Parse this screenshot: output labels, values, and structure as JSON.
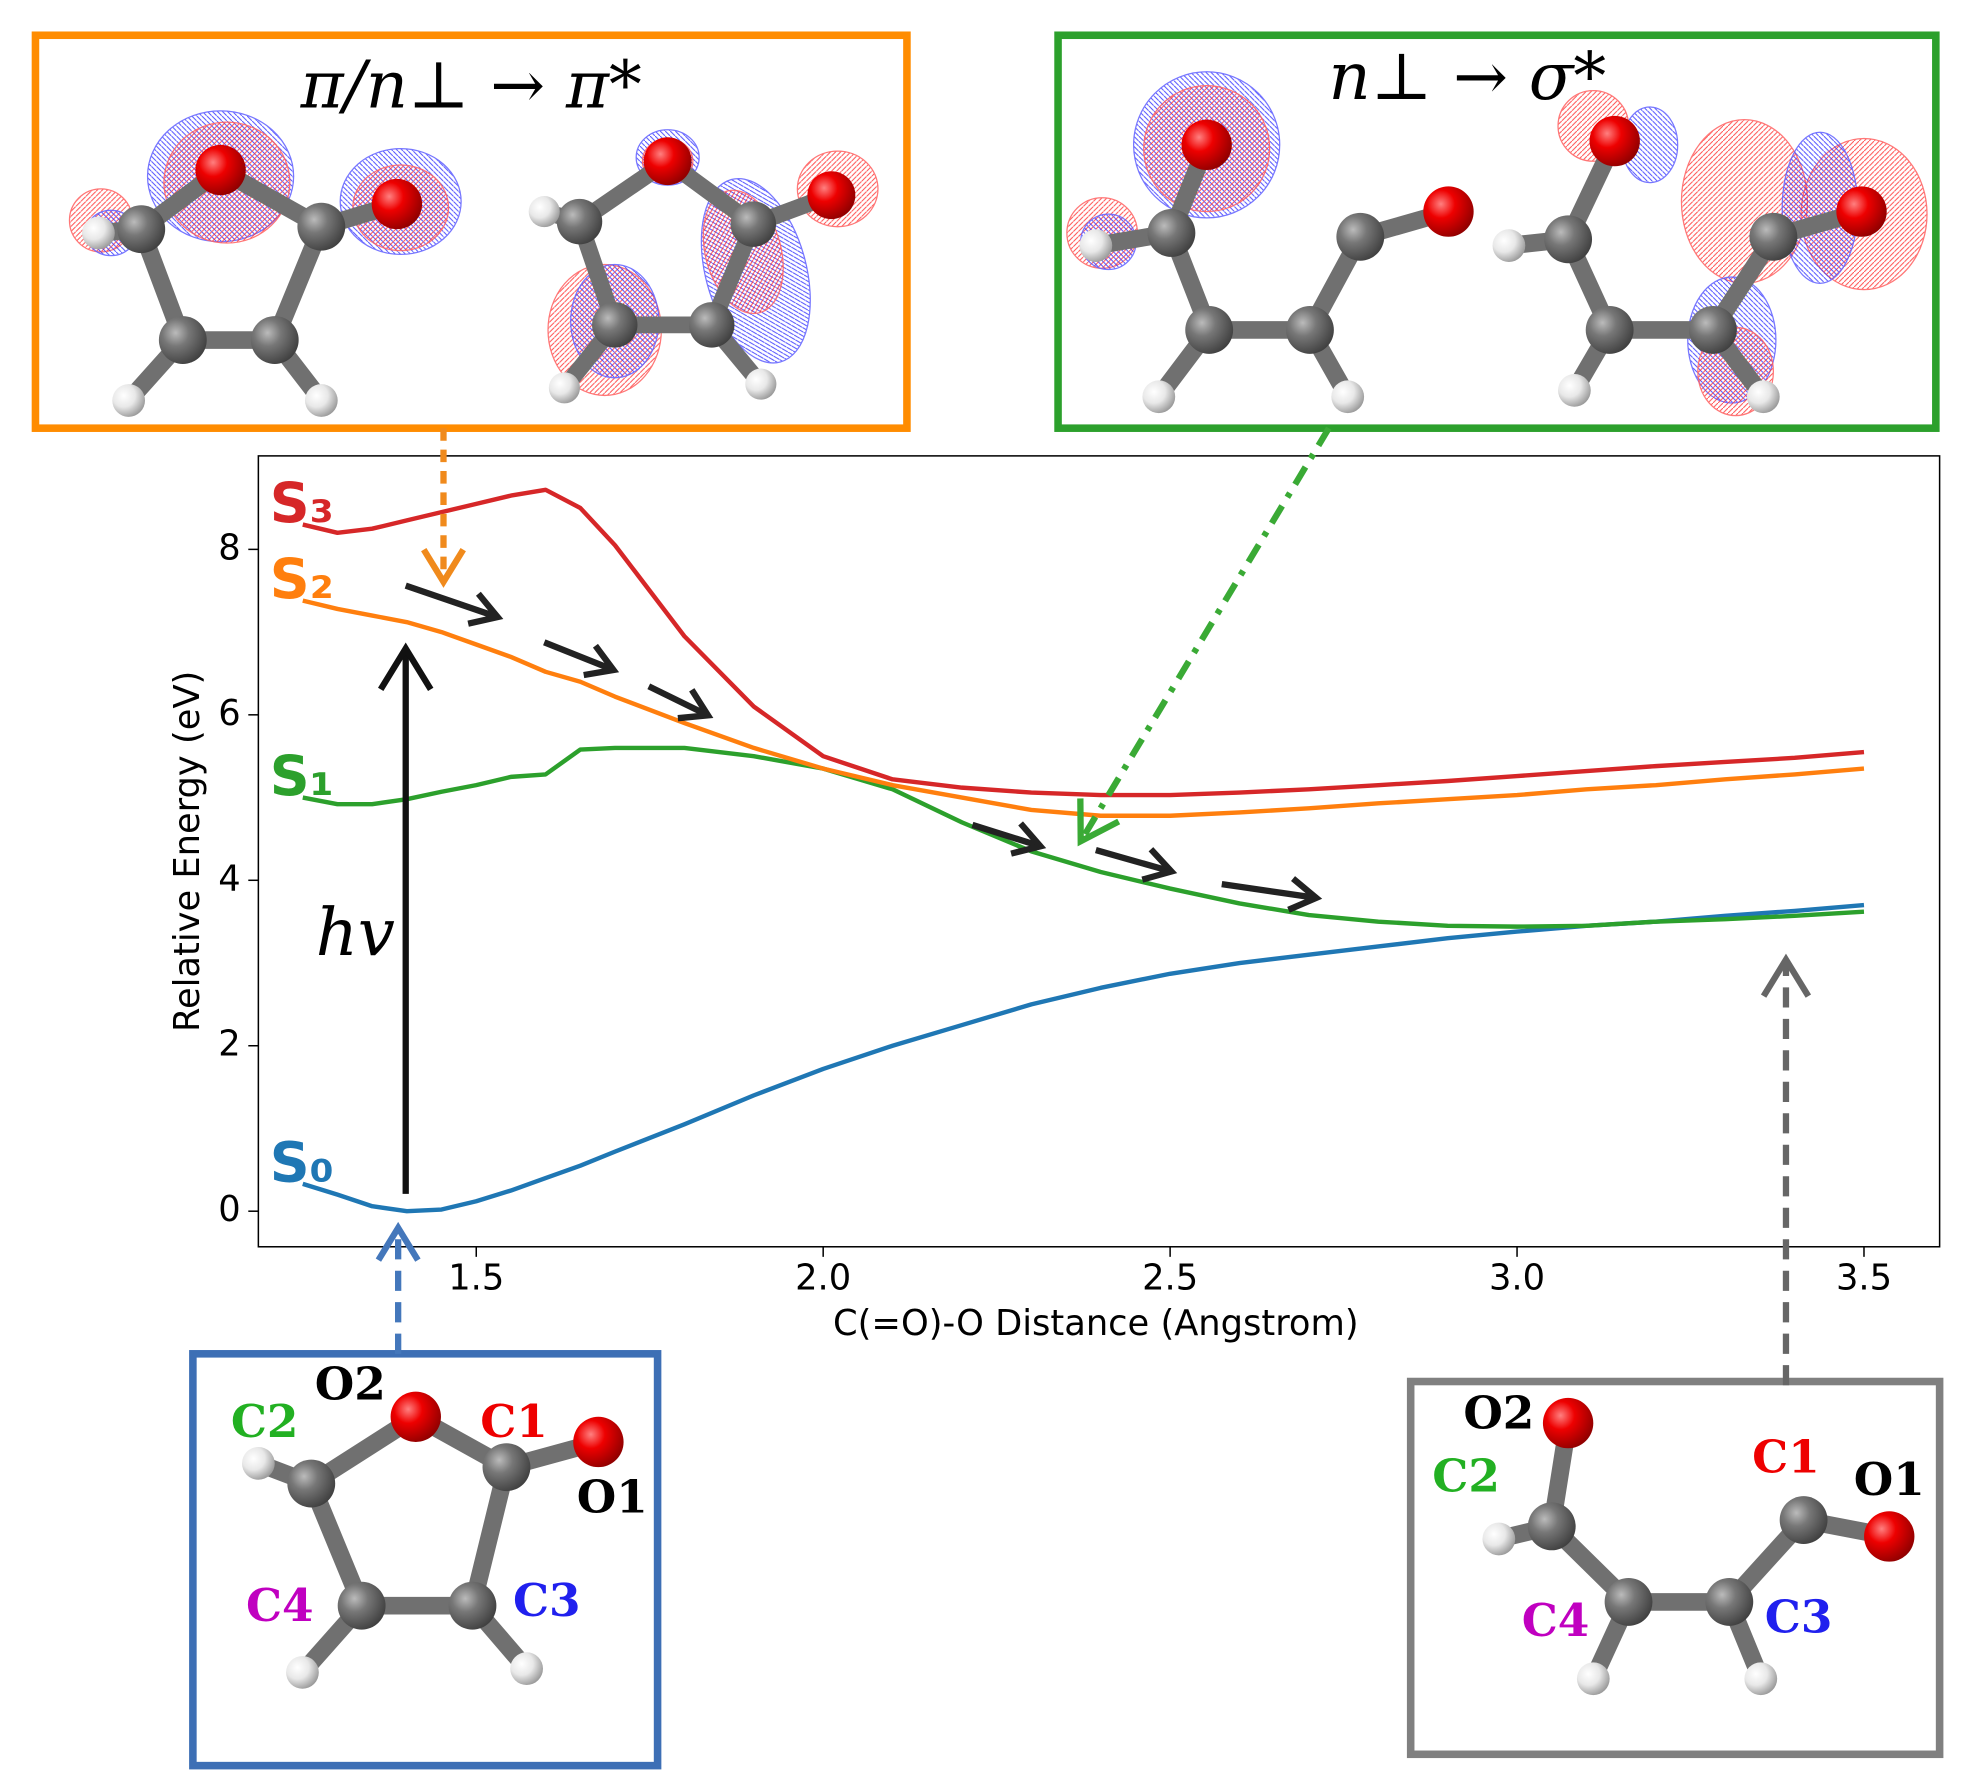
{
  "chart_data": {
    "type": "line",
    "x_label": "C(=O)-O Distance (Angstrom)",
    "y_label": "Relative Energy (eV)",
    "xlim": [
      1.186,
      3.609
    ],
    "ylim": [
      -0.43,
      9.13
    ],
    "xticks": [
      1.5,
      {
        "value": 2,
        "label": "2.0"
      },
      2.5,
      {
        "value": 3,
        "label": "3.0"
      },
      3.5
    ],
    "yticks": [
      0,
      2,
      4,
      6,
      8
    ],
    "x": [
      1.25,
      1.3,
      1.35,
      1.4,
      1.45,
      1.5,
      1.55,
      1.6,
      1.65,
      1.7,
      1.8,
      1.9,
      2.0,
      2.1,
      2.2,
      2.3,
      2.4,
      2.5,
      2.6,
      2.7,
      2.8,
      2.9,
      3.0,
      3.1,
      3.2,
      3.3,
      3.4,
      3.5
    ],
    "series": [
      {
        "name": "S₀",
        "color": "#1f77b4",
        "values": [
          0.33,
          0.2,
          0.06,
          0.0,
          0.02,
          0.12,
          0.25,
          0.4,
          0.55,
          0.72,
          1.05,
          1.4,
          1.72,
          2.0,
          2.25,
          2.5,
          2.7,
          2.87,
          3.0,
          3.1,
          3.2,
          3.3,
          3.38,
          3.45,
          3.5,
          3.57,
          3.63,
          3.7
        ]
      },
      {
        "name": "S₁",
        "color": "#2ca02c",
        "values": [
          5.0,
          4.92,
          4.92,
          4.98,
          5.07,
          5.15,
          5.25,
          5.28,
          5.58,
          5.6,
          5.6,
          5.5,
          5.35,
          5.1,
          4.7,
          4.35,
          4.1,
          3.9,
          3.72,
          3.58,
          3.5,
          3.45,
          3.44,
          3.45,
          3.5,
          3.53,
          3.57,
          3.62
        ]
      },
      {
        "name": "S₂",
        "color": "#ff7f0e",
        "values": [
          7.38,
          7.28,
          7.2,
          7.12,
          7.0,
          6.85,
          6.7,
          6.52,
          6.4,
          6.22,
          5.9,
          5.6,
          5.35,
          5.15,
          5.0,
          4.85,
          4.78,
          4.78,
          4.82,
          4.87,
          4.93,
          4.98,
          5.03,
          5.1,
          5.15,
          5.22,
          5.28,
          5.35
        ]
      },
      {
        "name": "S₃",
        "color": "#d62728",
        "values": [
          8.3,
          8.2,
          8.25,
          8.35,
          8.45,
          8.55,
          8.65,
          8.72,
          8.5,
          8.05,
          6.95,
          6.1,
          5.5,
          5.22,
          5.12,
          5.06,
          5.03,
          5.03,
          5.06,
          5.1,
          5.15,
          5.2,
          5.26,
          5.32,
          5.38,
          5.43,
          5.48,
          5.55
        ]
      }
    ],
    "annotations": [
      "hv",
      "π/n⊥ → π*",
      "n⊥ → σ*"
    ]
  },
  "structures": [
    {
      "labels": [
        "O2",
        "C1",
        "O1",
        "C2",
        "C4",
        "C3"
      ]
    },
    {
      "labels": [
        "O2",
        "C2",
        "C1",
        "O1",
        "C4",
        "C3"
      ]
    }
  ]
}
